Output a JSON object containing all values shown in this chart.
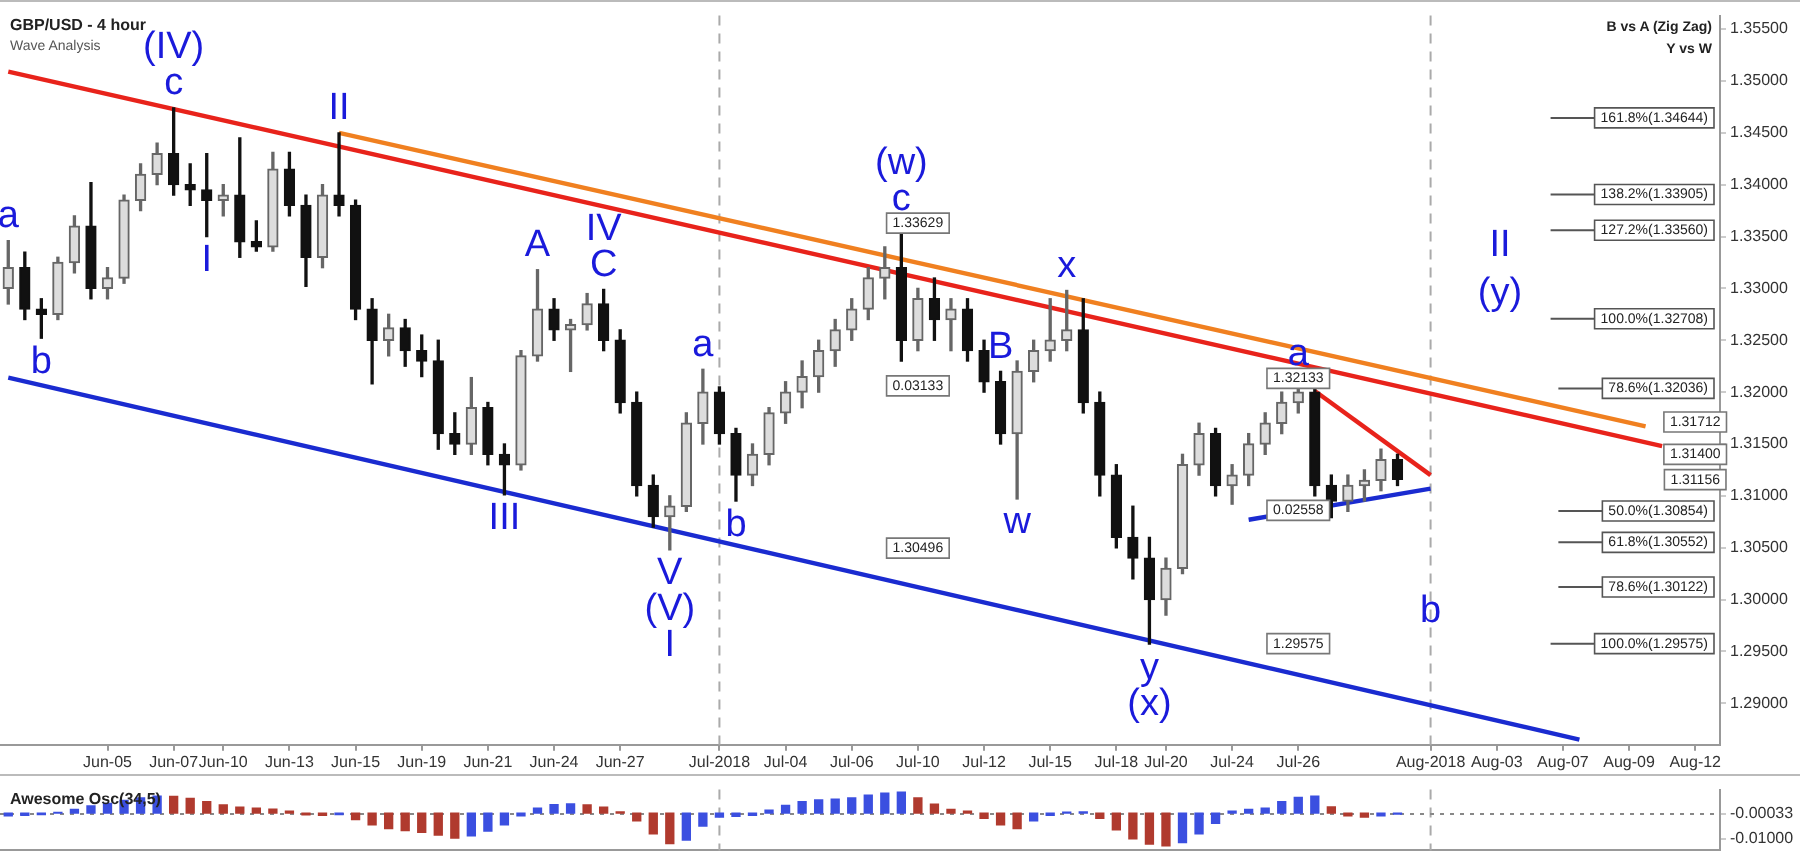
{
  "chart_data": [
    {
      "type": "candlestick",
      "title": "GBP/USD - 4 hour",
      "subtitle": "Wave Analysis",
      "categories": [
        null,
        null,
        null,
        null,
        null,
        null,
        "Jun-05",
        null,
        null,
        null,
        "Jun-07",
        null,
        null,
        "Jun-10",
        null,
        null,
        null,
        "Jun-13",
        null,
        null,
        null,
        "Jun-15",
        null,
        null,
        null,
        "Jun-19",
        null,
        null,
        null,
        "Jun-21",
        null,
        null,
        null,
        "Jun-24",
        null,
        null,
        null,
        "Jun-27",
        null,
        null,
        null,
        null,
        null,
        "Jul-2018",
        null,
        null,
        null,
        "Jul-04",
        null,
        null,
        null,
        "Jul-06",
        null,
        null,
        null,
        "Jul-10",
        null,
        null,
        null,
        "Jul-12",
        null,
        null,
        null,
        "Jul-15",
        null,
        null,
        null,
        "Jul-18",
        null,
        null,
        "Jul-20",
        null,
        null,
        null,
        "Jul-24",
        null,
        null,
        null,
        "Jul-26",
        null,
        null,
        null,
        null,
        null,
        null,
        null,
        "Aug-2018",
        null,
        null,
        null,
        "Aug-03",
        null,
        null,
        null,
        "Aug-07",
        null,
        null,
        null,
        "Aug-09",
        null,
        null,
        null,
        "Aug-12",
        null
      ],
      "ohlc": [
        [
          1.33,
          1.3346,
          1.3285,
          1.332
        ],
        [
          1.332,
          1.3335,
          1.327,
          1.328
        ],
        [
          1.328,
          1.329,
          1.3252,
          1.3275
        ],
        [
          1.3275,
          1.333,
          1.327,
          1.3325
        ],
        [
          1.3325,
          1.337,
          1.3315,
          1.336
        ],
        [
          1.336,
          1.3402,
          1.329,
          1.33
        ],
        [
          1.33,
          1.332,
          1.329,
          1.331
        ],
        [
          1.331,
          1.339,
          1.3305,
          1.3385
        ],
        [
          1.3385,
          1.342,
          1.3375,
          1.341
        ],
        [
          1.341,
          1.344,
          1.34,
          1.343
        ],
        [
          1.343,
          1.3474,
          1.339,
          1.34
        ],
        [
          1.34,
          1.342,
          1.338,
          1.3395
        ],
        [
          1.3395,
          1.343,
          1.335,
          1.3385
        ],
        [
          1.3385,
          1.34,
          1.337,
          1.339
        ],
        [
          1.339,
          1.3445,
          1.333,
          1.3345
        ],
        [
          1.3345,
          1.3365,
          1.3336,
          1.334
        ],
        [
          1.334,
          1.3431,
          1.3336,
          1.3415
        ],
        [
          1.3415,
          1.3431,
          1.337,
          1.338
        ],
        [
          1.338,
          1.339,
          1.3302,
          1.333
        ],
        [
          1.333,
          1.34,
          1.332,
          1.339
        ],
        [
          1.339,
          1.345,
          1.337,
          1.338
        ],
        [
          1.338,
          1.3385,
          1.327,
          1.328
        ],
        [
          1.328,
          1.329,
          1.3208,
          1.325
        ],
        [
          1.325,
          1.3275,
          1.3235,
          1.3262
        ],
        [
          1.3262,
          1.327,
          1.3225,
          1.324
        ],
        [
          1.324,
          1.3255,
          1.3215,
          1.323
        ],
        [
          1.323,
          1.325,
          1.3145,
          1.316
        ],
        [
          1.316,
          1.318,
          1.314,
          1.315
        ],
        [
          1.315,
          1.3214,
          1.314,
          1.3185
        ],
        [
          1.3185,
          1.319,
          1.313,
          1.314
        ],
        [
          1.314,
          1.315,
          1.3101,
          1.313
        ],
        [
          1.313,
          1.324,
          1.3125,
          1.3235
        ],
        [
          1.3235,
          1.3318,
          1.323,
          1.328
        ],
        [
          1.328,
          1.329,
          1.325,
          1.326
        ],
        [
          1.326,
          1.327,
          1.322,
          1.3265
        ],
        [
          1.3265,
          1.3295,
          1.326,
          1.3285
        ],
        [
          1.3285,
          1.3299,
          1.324,
          1.325
        ],
        [
          1.325,
          1.326,
          1.318,
          1.319
        ],
        [
          1.319,
          1.32,
          1.31,
          1.311
        ],
        [
          1.311,
          1.312,
          1.307,
          1.308
        ],
        [
          1.308,
          1.31,
          1.3048,
          1.309
        ],
        [
          1.309,
          1.318,
          1.3085,
          1.317
        ],
        [
          1.317,
          1.3222,
          1.315,
          1.32
        ],
        [
          1.32,
          1.3205,
          1.315,
          1.316
        ],
        [
          1.316,
          1.3165,
          1.3095,
          1.312
        ],
        [
          1.312,
          1.315,
          1.311,
          1.314
        ],
        [
          1.314,
          1.3185,
          1.313,
          1.318
        ],
        [
          1.318,
          1.321,
          1.317,
          1.32
        ],
        [
          1.32,
          1.323,
          1.3185,
          1.3215
        ],
        [
          1.3215,
          1.325,
          1.32,
          1.324
        ],
        [
          1.324,
          1.327,
          1.3225,
          1.326
        ],
        [
          1.326,
          1.329,
          1.325,
          1.328
        ],
        [
          1.328,
          1.332,
          1.327,
          1.331
        ],
        [
          1.331,
          1.334,
          1.329,
          1.332
        ],
        [
          1.332,
          1.33629,
          1.323,
          1.325
        ],
        [
          1.325,
          1.33,
          1.324,
          1.329
        ],
        [
          1.329,
          1.331,
          1.325,
          1.327
        ],
        [
          1.327,
          1.329,
          1.324,
          1.328
        ],
        [
          1.328,
          1.329,
          1.323,
          1.324
        ],
        [
          1.324,
          1.325,
          1.32,
          1.321
        ],
        [
          1.321,
          1.322,
          1.315,
          1.316
        ],
        [
          1.316,
          1.323,
          1.3097,
          1.322
        ],
        [
          1.322,
          1.325,
          1.321,
          1.324
        ],
        [
          1.324,
          1.329,
          1.323,
          1.325
        ],
        [
          1.325,
          1.3298,
          1.324,
          1.326
        ],
        [
          1.326,
          1.329,
          1.318,
          1.319
        ],
        [
          1.319,
          1.32,
          1.31,
          1.312
        ],
        [
          1.312,
          1.313,
          1.305,
          1.306
        ],
        [
          1.306,
          1.309,
          1.302,
          1.304
        ],
        [
          1.304,
          1.306,
          1.2957,
          1.3
        ],
        [
          1.3,
          1.304,
          1.2985,
          1.303
        ],
        [
          1.303,
          1.314,
          1.3025,
          1.313
        ],
        [
          1.313,
          1.317,
          1.312,
          1.316
        ],
        [
          1.316,
          1.3165,
          1.31,
          1.311
        ],
        [
          1.311,
          1.313,
          1.3092,
          1.312
        ],
        [
          1.312,
          1.316,
          1.311,
          1.315
        ],
        [
          1.315,
          1.318,
          1.314,
          1.317
        ],
        [
          1.317,
          1.32,
          1.316,
          1.319
        ],
        [
          1.319,
          1.32133,
          1.318,
          1.32
        ],
        [
          1.32,
          1.3205,
          1.31,
          1.311
        ],
        [
          1.311,
          1.312,
          1.3079,
          1.3095
        ],
        [
          1.3095,
          1.312,
          1.3085,
          1.311
        ],
        [
          1.311,
          1.3125,
          1.3095,
          1.3115
        ],
        [
          1.3115,
          1.3145,
          1.3105,
          1.3135
        ],
        [
          1.3135,
          1.314,
          1.311,
          1.3116
        ],
        null,
        null,
        null,
        null,
        null,
        null,
        null,
        null,
        null,
        null,
        null,
        null,
        null,
        null,
        null,
        null,
        null,
        null,
        null
      ],
      "series": [
        {
          "type": "line",
          "color": "#e8231b",
          "values": [
            1.3509,
            null,
            null,
            null,
            null,
            null,
            null,
            null,
            null,
            null,
            null,
            null,
            null,
            null,
            null,
            null,
            null,
            null,
            null,
            null,
            null,
            null,
            null,
            null,
            null,
            null,
            null,
            null,
            null,
            null,
            null,
            null,
            null,
            null,
            null,
            null,
            null,
            null,
            null,
            null,
            null,
            null,
            null,
            null,
            null,
            null,
            null,
            null,
            null,
            null,
            null,
            null,
            null,
            null,
            null,
            null,
            null,
            null,
            null,
            null,
            null,
            null,
            null,
            null,
            null,
            null,
            null,
            null,
            null,
            null,
            null,
            null,
            null,
            null,
            null,
            null,
            null,
            null,
            null,
            null,
            null,
            null,
            null,
            null,
            null,
            null,
            null,
            null,
            null,
            null,
            null,
            null,
            null,
            null,
            null,
            null,
            null,
            null,
            null,
            null,
            1.3148,
            null,
            null,
            null
          ]
        },
        {
          "type": "line",
          "color": "#f08020",
          "values": [
            null,
            null,
            null,
            null,
            null,
            null,
            null,
            null,
            null,
            null,
            null,
            null,
            null,
            null,
            null,
            null,
            null,
            null,
            null,
            null,
            1.345,
            null,
            null,
            null,
            null,
            null,
            null,
            null,
            null,
            null,
            null,
            null,
            null,
            null,
            null,
            null,
            null,
            null,
            null,
            null,
            null,
            null,
            null,
            null,
            null,
            null,
            null,
            null,
            null,
            null,
            null,
            null,
            null,
            null,
            null,
            null,
            null,
            null,
            null,
            null,
            null,
            null,
            null,
            null,
            null,
            null,
            null,
            null,
            null,
            null,
            null,
            null,
            null,
            null,
            null,
            null,
            null,
            null,
            null,
            null,
            null,
            null,
            null,
            null,
            null,
            null,
            null,
            null,
            null,
            null,
            null,
            null,
            null,
            null,
            null,
            null,
            null,
            null,
            null,
            1.3167,
            null,
            null,
            null,
            null
          ]
        },
        {
          "type": "line",
          "color": "#1a2bd0",
          "values": [
            1.3214,
            null,
            null,
            null,
            null,
            null,
            null,
            null,
            null,
            null,
            null,
            null,
            null,
            null,
            null,
            null,
            null,
            null,
            null,
            null,
            null,
            null,
            null,
            null,
            null,
            null,
            null,
            null,
            null,
            null,
            null,
            null,
            null,
            null,
            null,
            null,
            null,
            null,
            null,
            null,
            null,
            null,
            null,
            null,
            null,
            null,
            null,
            null,
            null,
            null,
            null,
            null,
            null,
            null,
            null,
            null,
            null,
            null,
            null,
            null,
            null,
            null,
            null,
            null,
            null,
            null,
            null,
            null,
            null,
            null,
            null,
            null,
            null,
            null,
            null,
            null,
            null,
            null,
            null,
            null,
            null,
            null,
            null,
            null,
            null,
            null,
            null,
            null,
            null,
            null,
            null,
            null,
            null,
            null,
            null,
            1.2865,
            null,
            null,
            null,
            null,
            null,
            null,
            null,
            null
          ]
        },
        {
          "type": "line",
          "color": "#e8231b",
          "values": [
            null,
            null,
            null,
            null,
            null,
            null,
            null,
            null,
            null,
            null,
            null,
            null,
            null,
            null,
            null,
            null,
            null,
            null,
            null,
            null,
            null,
            null,
            null,
            null,
            null,
            null,
            null,
            null,
            null,
            null,
            null,
            null,
            null,
            null,
            null,
            null,
            null,
            null,
            null,
            null,
            null,
            null,
            null,
            null,
            null,
            null,
            null,
            null,
            null,
            null,
            null,
            null,
            null,
            null,
            null,
            null,
            null,
            null,
            null,
            null,
            null,
            null,
            null,
            null,
            null,
            null,
            null,
            null,
            null,
            null,
            null,
            null,
            null,
            null,
            null,
            null,
            null,
            null,
            null,
            1.3201,
            null,
            null,
            null,
            null,
            null,
            null,
            1.312,
            null,
            null,
            null,
            null,
            null,
            null,
            null,
            null,
            null,
            null,
            null,
            null,
            null,
            null,
            null,
            null,
            null
          ]
        },
        {
          "type": "line",
          "color": "#1a2bd0",
          "values": [
            null,
            null,
            null,
            null,
            null,
            null,
            null,
            null,
            null,
            null,
            null,
            null,
            null,
            null,
            null,
            null,
            null,
            null,
            null,
            null,
            null,
            null,
            null,
            null,
            null,
            null,
            null,
            null,
            null,
            null,
            null,
            null,
            null,
            null,
            null,
            null,
            null,
            null,
            null,
            null,
            null,
            null,
            null,
            null,
            null,
            null,
            null,
            null,
            null,
            null,
            null,
            null,
            null,
            null,
            null,
            null,
            null,
            null,
            null,
            null,
            null,
            null,
            null,
            null,
            null,
            null,
            null,
            null,
            null,
            null,
            null,
            null,
            null,
            null,
            null,
            1.3077,
            null,
            null,
            null,
            null,
            null,
            null,
            null,
            null,
            null,
            null,
            1.3107,
            null,
            null,
            null,
            null,
            null,
            null,
            null,
            null,
            null,
            null,
            null,
            null,
            null,
            null,
            null,
            null,
            null
          ]
        }
      ],
      "ylim": [
        1.286,
        1.3563
      ],
      "yticks": [
        {
          "value": 1.29,
          "label": "1.29000"
        },
        {
          "value": 1.295,
          "label": "1.29500"
        },
        {
          "value": 1.3,
          "label": "1.30000"
        },
        {
          "value": 1.305,
          "label": "1.30500"
        },
        {
          "value": 1.31,
          "label": "1.31000"
        },
        {
          "value": 1.315,
          "label": "1.31500"
        },
        {
          "value": 1.32,
          "label": "1.32000"
        },
        {
          "value": 1.325,
          "label": "1.32500"
        },
        {
          "value": 1.33,
          "label": "1.33000"
        },
        {
          "value": 1.335,
          "label": "1.33500"
        },
        {
          "value": 1.34,
          "label": "1.34000"
        },
        {
          "value": 1.345,
          "label": "1.34500"
        },
        {
          "value": 1.35,
          "label": "1.35000"
        },
        {
          "value": 1.355,
          "label": "1.35500"
        }
      ],
      "ref_lines": [
        {
          "axis": "x",
          "value": "Jul-2018",
          "color": "#aaaaaa",
          "line_style": "dashed"
        },
        {
          "axis": "x",
          "value": "Aug-2018",
          "color": "#aaaaaa",
          "line_style": "dashed"
        },
        {
          "axis": "y",
          "value": 1.30854,
          "label": "50.0%(1.30854)",
          "color": "#555555"
        },
        {
          "axis": "y",
          "value": 1.30552,
          "label": "61.8%(1.30552)",
          "color": "#555555"
        },
        {
          "axis": "y",
          "value": 1.30122,
          "label": "78.6%(1.30122)",
          "color": "#555555"
        },
        {
          "axis": "y",
          "value": 1.29575,
          "label": "100.0%(1.29575)",
          "color": "#555555"
        },
        {
          "axis": "y",
          "value": 1.34644,
          "label": "161.8%(1.34644)",
          "color": "#555555"
        },
        {
          "axis": "y",
          "value": 1.33905,
          "label": "138.2%(1.33905)",
          "color": "#555555"
        },
        {
          "axis": "y",
          "value": 1.3356,
          "label": "127.2%(1.33560)",
          "color": "#555555"
        },
        {
          "axis": "y",
          "value": 1.32708,
          "label": "100.0%(1.32708)",
          "color": "#555555"
        },
        {
          "axis": "y",
          "value": 1.32036,
          "label": "78.6%(1.32036)",
          "color": "#555555"
        }
      ],
      "annotations": [
        {
          "text": "c",
          "y": 1.3474
        },
        {
          "text": "(IV)",
          "y": 1.3474
        },
        {
          "text": "a",
          "y": 1.3346
        },
        {
          "text": "b",
          "y": 1.3252
        },
        {
          "text": "I",
          "y": 1.335
        },
        {
          "text": "II",
          "y": 1.345
        },
        {
          "text": "A",
          "y": 1.3318
        },
        {
          "text": "C",
          "y": 1.3299
        },
        {
          "text": "IV",
          "y": 1.3299
        },
        {
          "text": "B",
          "y": 1.322
        },
        {
          "text": "III",
          "y": 1.3101
        },
        {
          "text": "V",
          "y": 1.3048
        },
        {
          "text": "(V)",
          "y": 1.3048
        },
        {
          "text": "I",
          "y": 1.3048
        },
        {
          "text": "a",
          "y": 1.3222
        },
        {
          "text": "b",
          "y": 1.3095
        },
        {
          "text": "c",
          "y": 1.33629
        },
        {
          "text": "(w)",
          "y": 1.33629
        },
        {
          "text": "w",
          "y": 1.3097
        },
        {
          "text": "x",
          "y": 1.3298
        },
        {
          "text": "y",
          "y": 1.2957
        },
        {
          "text": "(x)",
          "y": 1.2957
        },
        {
          "text": "a",
          "y": 1.32133
        },
        {
          "text": "b",
          "x": "Aug-2018",
          "y": 1.2988
        },
        "II",
        "(y)",
        {
          "text": "1.33629",
          "x": "Jul-10",
          "y": 1.33629
        },
        {
          "text": "0.03133",
          "x": "Jul-10",
          "y": 1.3206
        },
        {
          "text": "1.30496",
          "x": "Jul-10",
          "y": 1.30496
        },
        {
          "text": "1.32133",
          "x": "Jul-26",
          "y": 1.32133
        },
        {
          "text": "0.02558",
          "x": "Jul-26",
          "y": 1.3086
        },
        {
          "text": "1.29575",
          "x": "Jul-26",
          "y": 1.29575
        },
        "B vs A (Zig Zag)",
        "Y vs W",
        {
          "text": "1.31712",
          "x": "Aug-12",
          "y": 1.31712
        },
        {
          "text": "1.31400",
          "x": "Aug-12",
          "y": 1.314
        },
        {
          "text": "1.31156",
          "x": "Aug-12",
          "y": 1.31156
        }
      ]
    },
    {
      "type": "bar",
      "title": "Awesome Osc(34,5)",
      "tick_labels": "y",
      "categories": [
        null,
        null,
        null,
        null,
        null,
        null,
        "Jun-05",
        null,
        null,
        null,
        "Jun-07",
        null,
        null,
        "Jun-10",
        null,
        null,
        null,
        "Jun-13",
        null,
        null,
        null,
        "Jun-15",
        null,
        null,
        null,
        "Jun-19",
        null,
        null,
        null,
        "Jun-21",
        null,
        null,
        null,
        "Jun-24",
        null,
        null,
        null,
        "Jun-27",
        null,
        null,
        null,
        null,
        null,
        "Jul-2018",
        null,
        null,
        null,
        "Jul-04",
        null,
        null,
        null,
        "Jul-06",
        null,
        null,
        null,
        "Jul-10",
        null,
        null,
        null,
        "Jul-12",
        null,
        null,
        null,
        "Jul-15",
        null,
        null,
        null,
        "Jul-18",
        null,
        null,
        "Jul-20",
        null,
        null,
        null,
        "Jul-24",
        null,
        null,
        null,
        "Jul-26",
        null,
        null,
        null,
        null,
        null,
        null,
        null,
        "Aug-2018",
        null,
        null,
        null,
        "Aug-03",
        null,
        null,
        null,
        "Aug-07",
        null,
        null,
        null,
        "Aug-09",
        null,
        null,
        null,
        "Aug-12",
        null
      ],
      "values": [
        -0.001,
        -0.0008,
        -0.0005,
        0.0003,
        0.0015,
        0.0028,
        0.0038,
        0.005,
        0.006,
        0.0066,
        0.0065,
        0.0058,
        0.0045,
        0.0032,
        0.0024,
        0.002,
        0.0016,
        0.0008,
        -0.0006,
        -0.0008,
        -0.0005,
        -0.0025,
        -0.0045,
        -0.006,
        -0.0068,
        -0.0075,
        -0.0085,
        -0.0097,
        -0.0088,
        -0.007,
        -0.0045,
        -0.001,
        0.002,
        0.0033,
        0.0036,
        0.0032,
        0.0024,
        0.0005,
        -0.003,
        -0.008,
        -0.0118,
        -0.0105,
        -0.005,
        -0.0015,
        -0.0012,
        -0.0008,
        0.0012,
        0.003,
        0.0045,
        0.0052,
        0.0055,
        0.006,
        0.007,
        0.0078,
        0.0082,
        0.006,
        0.0035,
        0.0015,
        0.0008,
        -0.002,
        -0.0045,
        -0.006,
        -0.003,
        -0.0008,
        0.0004,
        0.0005,
        -0.002,
        -0.0065,
        -0.01,
        -0.012,
        -0.0127,
        -0.0115,
        -0.008,
        -0.004,
        0.0008,
        0.0015,
        0.002,
        0.0045,
        0.0062,
        0.0066,
        0.0025,
        -0.001,
        -0.0015,
        -0.001,
        -0.0003,
        null,
        null,
        null,
        null,
        null,
        null,
        null,
        null,
        null,
        null,
        null,
        null,
        null,
        null,
        null,
        null,
        null,
        null,
        null
      ],
      "colors": [
        "#3b4fe0",
        "#3b4fe0",
        "#3b4fe0",
        "#3b4fe0",
        "#3b4fe0",
        "#3b4fe0",
        "#3b4fe0",
        "#3b4fe0",
        "#3b4fe0",
        "#3b4fe0",
        "#b03a2e",
        "#b03a2e",
        "#b03a2e",
        "#b03a2e",
        "#b03a2e",
        "#b03a2e",
        "#b03a2e",
        "#b03a2e",
        "#b03a2e",
        "#b03a2e",
        "#3b4fe0",
        "#b03a2e",
        "#b03a2e",
        "#b03a2e",
        "#b03a2e",
        "#b03a2e",
        "#b03a2e",
        "#b03a2e",
        "#3b4fe0",
        "#3b4fe0",
        "#3b4fe0",
        "#3b4fe0",
        "#3b4fe0",
        "#3b4fe0",
        "#3b4fe0",
        "#b03a2e",
        "#b03a2e",
        "#b03a2e",
        "#b03a2e",
        "#b03a2e",
        "#b03a2e",
        "#3b4fe0",
        "#3b4fe0",
        "#3b4fe0",
        "#3b4fe0",
        "#3b4fe0",
        "#3b4fe0",
        "#3b4fe0",
        "#3b4fe0",
        "#3b4fe0",
        "#3b4fe0",
        "#3b4fe0",
        "#3b4fe0",
        "#3b4fe0",
        "#3b4fe0",
        "#b03a2e",
        "#b03a2e",
        "#b03a2e",
        "#b03a2e",
        "#b03a2e",
        "#b03a2e",
        "#b03a2e",
        "#3b4fe0",
        "#3b4fe0",
        "#3b4fe0",
        "#3b4fe0",
        "#b03a2e",
        "#b03a2e",
        "#b03a2e",
        "#b03a2e",
        "#b03a2e",
        "#3b4fe0",
        "#3b4fe0",
        "#3b4fe0",
        "#3b4fe0",
        "#3b4fe0",
        "#3b4fe0",
        "#3b4fe0",
        "#3b4fe0",
        "#3b4fe0",
        "#b03a2e",
        "#b03a2e",
        "#b03a2e",
        "#3b4fe0",
        "#3b4fe0",
        null,
        null,
        null,
        null,
        null,
        null,
        null,
        null,
        null,
        null,
        null,
        null,
        null,
        null,
        null,
        null,
        null,
        null,
        null
      ],
      "ylim": [
        -0.0145,
        0.0092
      ],
      "yticks": [
        {
          "value": -0.00033,
          "label": "-0.00033"
        },
        {
          "value": -0.01,
          "label": "-0.01000"
        }
      ],
      "ref_lines": [
        {
          "axis": "x",
          "value": "Jul-2018",
          "color": "#aaaaaa",
          "line_style": "dashed"
        },
        {
          "axis": "x",
          "value": "Aug-2018",
          "color": "#aaaaaa",
          "line_style": "dashed"
        },
        {
          "axis": "y",
          "value": -0.00033,
          "color": "#888888",
          "line_style": "dotted"
        }
      ]
    }
  ]
}
